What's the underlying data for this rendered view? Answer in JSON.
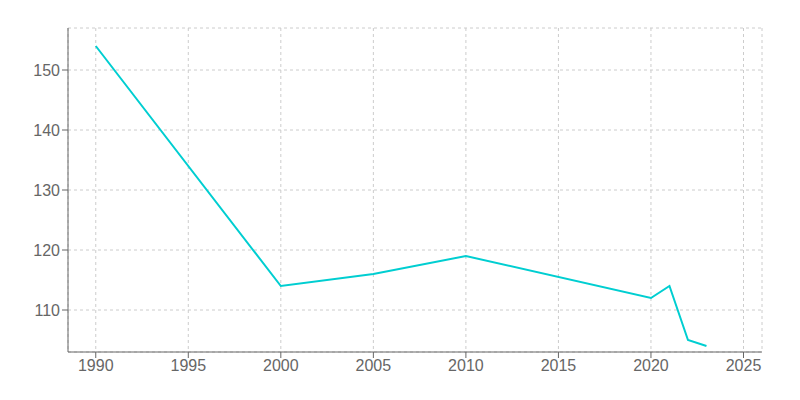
{
  "chart_data": {
    "type": "line",
    "x": [
      1990,
      2000,
      2005,
      2010,
      2020,
      2021,
      2022,
      2023
    ],
    "values": [
      154,
      114,
      116,
      119,
      112,
      114,
      105,
      104
    ],
    "color": "#00CED1",
    "xlim": [
      1988.5,
      2026
    ],
    "ylim": [
      103,
      157
    ],
    "xticks": [
      1990,
      1995,
      2000,
      2005,
      2010,
      2015,
      2020,
      2025
    ],
    "yticks": [
      110,
      120,
      130,
      140,
      150
    ],
    "grid": true
  }
}
